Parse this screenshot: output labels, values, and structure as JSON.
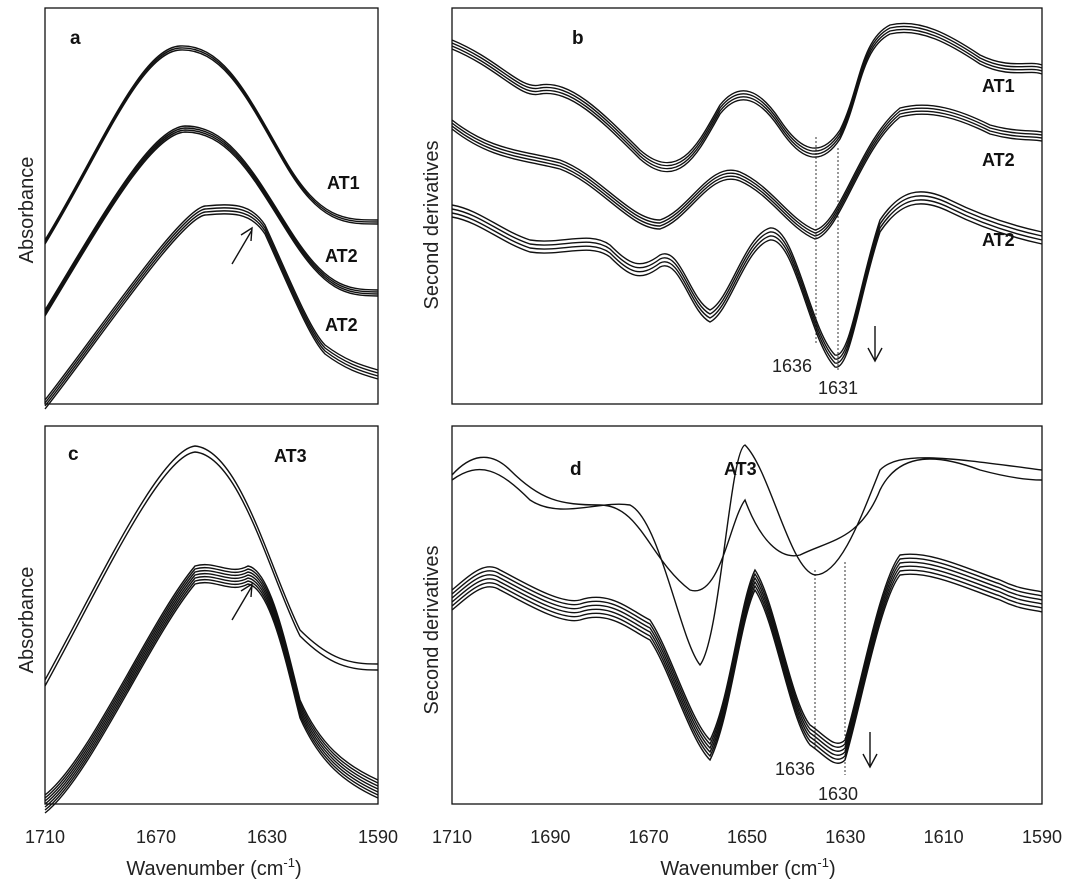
{
  "figure": {
    "colors": {
      "line": "#111111",
      "background": "#ffffff"
    },
    "x_ticks": [
      1710,
      1670,
      1630,
      1590
    ],
    "x_ticks_right": [
      1710,
      1690,
      1670,
      1650,
      1630,
      1610,
      1590
    ],
    "xlabel_main": "Wavenumber (cm",
    "xlabel_sup": "-1",
    "xlabel_close": ")"
  },
  "chart_data": [
    {
      "panel": "a",
      "type": "line",
      "ylabel": "Absorbance",
      "xlim": [
        1710,
        1590
      ],
      "reversed_x": true,
      "series_labels": [
        "AT1",
        "AT2",
        "AT2"
      ],
      "annotations": [
        {
          "kind": "arrow",
          "near_x": 1636
        }
      ]
    },
    {
      "panel": "b",
      "type": "line",
      "ylabel": "Second derivatives",
      "xlim": [
        1710,
        1590
      ],
      "reversed_x": true,
      "series_labels": [
        "AT1",
        "AT2",
        "AT2"
      ],
      "marked_wavenumbers": [
        "1636",
        "1631"
      ],
      "annotations": [
        {
          "kind": "arrow-down",
          "near_x": 1624
        }
      ]
    },
    {
      "panel": "c",
      "type": "line",
      "ylabel": "Absorbance",
      "xlim": [
        1710,
        1590
      ],
      "reversed_x": true,
      "series_labels": [
        "AT3"
      ],
      "annotations": [
        {
          "kind": "arrow",
          "near_x": 1636
        }
      ]
    },
    {
      "panel": "d",
      "type": "line",
      "ylabel": "Second derivatives",
      "xlim": [
        1710,
        1590
      ],
      "reversed_x": true,
      "series_labels": [
        "AT3"
      ],
      "marked_wavenumbers": [
        "1636",
        "1630"
      ],
      "annotations": [
        {
          "kind": "arrow-down",
          "near_x": 1622
        }
      ]
    }
  ]
}
